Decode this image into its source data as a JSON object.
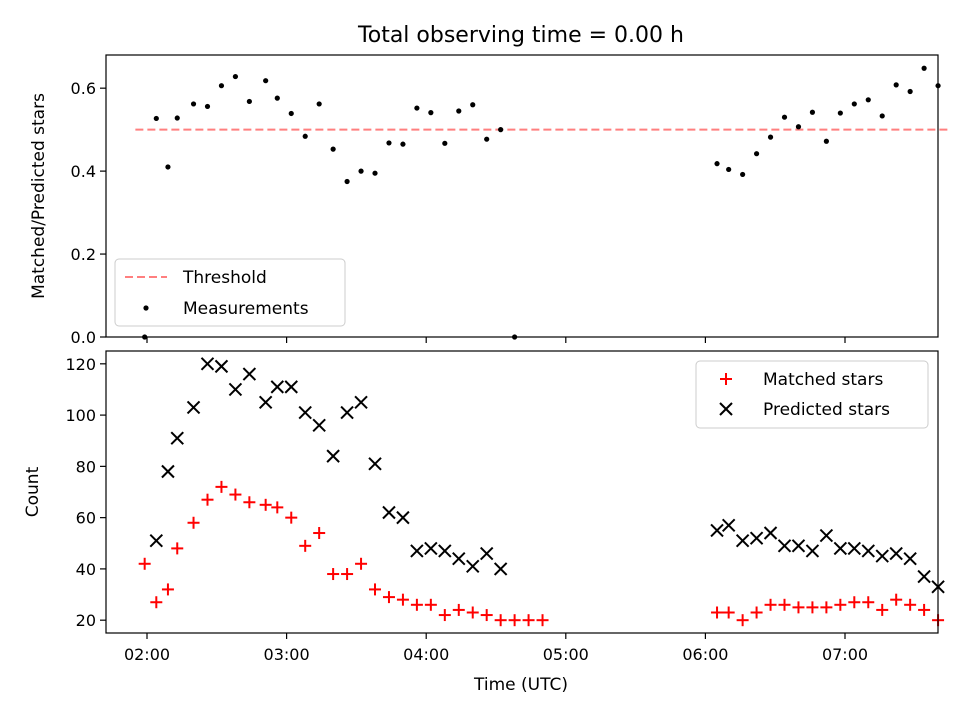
{
  "chart_data": [
    {
      "type": "scatter",
      "title": "Total observing time = 0.00 h",
      "ylabel": "Matched/Predicted stars",
      "ylim": [
        0,
        0.68
      ],
      "y_ticks": [
        "0.0",
        "0.2",
        "0.4",
        "0.6"
      ],
      "threshold": 0.5,
      "legend_position": "lower-left",
      "legend": {
        "threshold": "Threshold",
        "measurements": "Measurements"
      },
      "threshold_color": "#ff7f7f",
      "series": [
        {
          "name": "Measurements",
          "x": [
            "01:59",
            "02:04",
            "02:09",
            "02:13",
            "02:20",
            "02:26",
            "02:32",
            "02:38",
            "02:44",
            "02:51",
            "02:56",
            "03:02",
            "03:08",
            "03:14",
            "03:20",
            "03:26",
            "03:32",
            "03:38",
            "03:44",
            "03:50",
            "03:56",
            "04:02",
            "04:08",
            "04:14",
            "04:20",
            "04:26",
            "04:32",
            "04:38",
            "06:05",
            "06:10",
            "06:16",
            "06:22",
            "06:28",
            "06:34",
            "06:40",
            "06:46",
            "06:52",
            "06:58",
            "07:04",
            "07:10",
            "07:16",
            "07:22",
            "07:28",
            "07:34",
            "07:40"
          ],
          "y": [
            0.0,
            0.527,
            0.41,
            0.528,
            0.562,
            0.556,
            0.606,
            0.628,
            0.568,
            0.618,
            0.576,
            0.539,
            0.484,
            0.562,
            0.453,
            0.375,
            0.4,
            0.395,
            0.468,
            0.465,
            0.552,
            0.541,
            0.467,
            0.545,
            0.56,
            0.477,
            0.5,
            0.0,
            0.418,
            0.404,
            0.392,
            0.442,
            0.482,
            0.53,
            0.507,
            0.542,
            0.472,
            0.54,
            0.562,
            0.572,
            0.533,
            0.608,
            0.592,
            0.648,
            0.606
          ]
        }
      ]
    },
    {
      "type": "scatter",
      "xlabel": "Time (UTC)",
      "ylabel": "Count",
      "ylim": [
        15,
        125
      ],
      "y_ticks": [
        "20",
        "40",
        "60",
        "80",
        "100",
        "120"
      ],
      "x_ticks": [
        "02:00",
        "03:00",
        "04:00",
        "05:00",
        "06:00",
        "07:00"
      ],
      "legend_position": "upper-right",
      "series": [
        {
          "name": "Matched stars",
          "color": "#ff0000",
          "x": [
            "01:59",
            "02:04",
            "02:09",
            "02:13",
            "02:20",
            "02:26",
            "02:32",
            "02:38",
            "02:44",
            "02:51",
            "02:56",
            "03:02",
            "03:08",
            "03:14",
            "03:20",
            "03:26",
            "03:32",
            "03:38",
            "03:44",
            "03:50",
            "03:56",
            "04:02",
            "04:08",
            "04:14",
            "04:20",
            "04:26",
            "04:32",
            "04:38",
            "04:44",
            "04:50",
            "06:05",
            "06:10",
            "06:16",
            "06:22",
            "06:28",
            "06:34",
            "06:40",
            "06:46",
            "06:52",
            "06:58",
            "07:04",
            "07:10",
            "07:16",
            "07:22",
            "07:28",
            "07:34",
            "07:40"
          ],
          "y": [
            42,
            27,
            32,
            48,
            58,
            67,
            72,
            69,
            66,
            65,
            64,
            60,
            49,
            54,
            38,
            38,
            42,
            32,
            29,
            28,
            26,
            26,
            22,
            24,
            23,
            22,
            20,
            20,
            20,
            20,
            23,
            23,
            20,
            23,
            26,
            26,
            25,
            25,
            25,
            26,
            27,
            27,
            24,
            28,
            26,
            24,
            20
          ]
        },
        {
          "name": "Predicted stars",
          "color": "#000000",
          "x": [
            "02:04",
            "02:09",
            "02:13",
            "02:20",
            "02:26",
            "02:32",
            "02:38",
            "02:44",
            "02:51",
            "02:56",
            "03:02",
            "03:08",
            "03:14",
            "03:20",
            "03:26",
            "03:32",
            "03:38",
            "03:44",
            "03:50",
            "03:56",
            "04:02",
            "04:08",
            "04:14",
            "04:20",
            "04:26",
            "04:32",
            "06:05",
            "06:10",
            "06:16",
            "06:22",
            "06:28",
            "06:34",
            "06:40",
            "06:46",
            "06:52",
            "06:58",
            "07:04",
            "07:10",
            "07:16",
            "07:22",
            "07:28",
            "07:34",
            "07:40"
          ],
          "y": [
            51,
            78,
            91,
            103,
            120,
            119,
            110,
            116,
            105,
            111,
            111,
            101,
            96,
            84,
            101,
            105,
            81,
            62,
            60,
            47,
            48,
            47,
            44,
            41,
            46,
            40,
            55,
            57,
            51,
            52,
            54,
            49,
            49,
            47,
            53,
            48,
            48,
            47,
            45,
            46,
            44,
            37,
            33
          ]
        }
      ]
    }
  ]
}
